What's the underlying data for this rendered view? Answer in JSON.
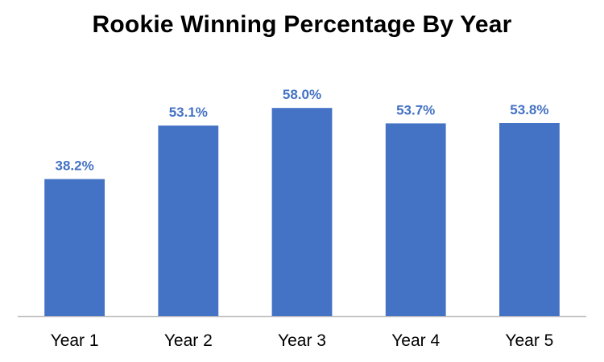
{
  "chart_data": {
    "type": "bar",
    "title": "Rookie Winning Percentage By Year",
    "categories": [
      "Year 1",
      "Year 2",
      "Year 3",
      "Year 4",
      "Year 5"
    ],
    "values": [
      38.2,
      53.1,
      58.0,
      53.7,
      53.8
    ],
    "value_labels": [
      "38.2%",
      "53.1%",
      "58.0%",
      "53.7%",
      "53.8%"
    ],
    "ylim": [
      0,
      65
    ],
    "grid": false,
    "legend": "none",
    "bar_color": "#4472C4",
    "label_color": "#4472C4",
    "axis_color": "#BFBFBF"
  }
}
